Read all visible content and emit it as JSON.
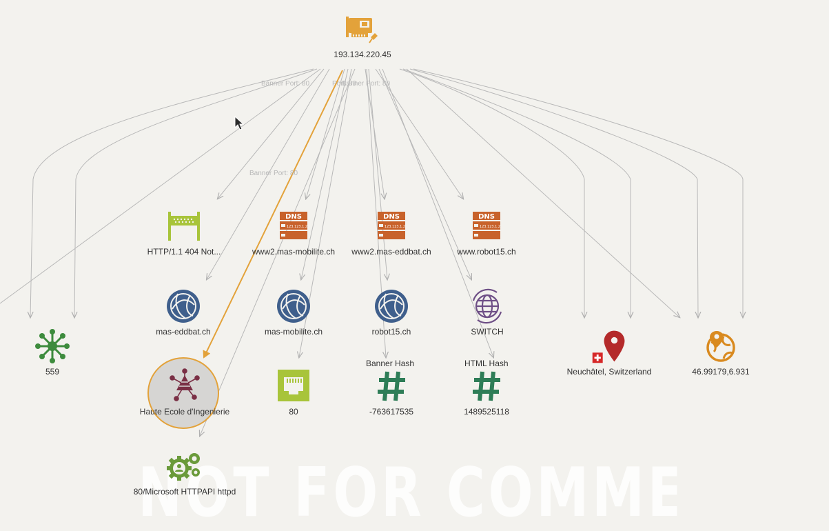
{
  "root": {
    "label": "193.134.220.45",
    "icon": "network-card-icon",
    "pin_icon": "pin-icon"
  },
  "edge_labels": [
    "Banner Port: 80",
    "Port: 80",
    "Banner Port: 80",
    "Banner Port: 80"
  ],
  "row1": [
    {
      "id": "http",
      "label": "HTTP/1.1 404 Not...",
      "icon": "http-banner-icon"
    },
    {
      "id": "dns1",
      "label": "www2.mas-mobilite.ch",
      "icon": "dns-icon"
    },
    {
      "id": "dns2",
      "label": "www2.mas-eddbat.ch",
      "icon": "dns-icon"
    },
    {
      "id": "dns3",
      "label": "www.robot15.ch",
      "icon": "dns-icon"
    }
  ],
  "row2": [
    {
      "id": "dom1",
      "label": "mas-eddbat.ch",
      "icon": "globe-icon"
    },
    {
      "id": "dom2",
      "label": "mas-mobilite.ch",
      "icon": "globe-icon"
    },
    {
      "id": "dom3",
      "label": "robot15.ch",
      "icon": "globe-icon"
    },
    {
      "id": "as",
      "label": "SWITCH",
      "icon": "as-globe-icon"
    }
  ],
  "row3": [
    {
      "id": "n559",
      "label": "559",
      "icon": "hub-icon"
    },
    {
      "id": "org",
      "label": "Haute Ecole d'Ingenierie",
      "icon": "organization-icon"
    },
    {
      "id": "port",
      "label": "80",
      "icon": "ethernet-port-icon"
    },
    {
      "id": "bhash",
      "top": "Banner Hash",
      "label": "-763617535",
      "icon": "hash-icon"
    },
    {
      "id": "hhash",
      "top": "HTML Hash",
      "label": "1489525118",
      "icon": "hash-icon"
    },
    {
      "id": "loc",
      "label": "Neuchâtel, Switzerland",
      "icon": "location-pin-icon"
    },
    {
      "id": "geo",
      "label": "46.99179,6.931",
      "icon": "geo-globe-icon"
    }
  ],
  "row4": [
    {
      "id": "svc",
      "label": "80/Microsoft HTTPAPI httpd",
      "icon": "service-gears-icon"
    }
  ],
  "watermark": "NOT FOR COMMERCIAL USE",
  "colors": {
    "edge": "#b8b8b8",
    "highlight": "#e3a23a",
    "dns": "#c8622b",
    "globe": "#3f5f8c",
    "hash": "#2e7d57",
    "http": "#a8c43a"
  }
}
